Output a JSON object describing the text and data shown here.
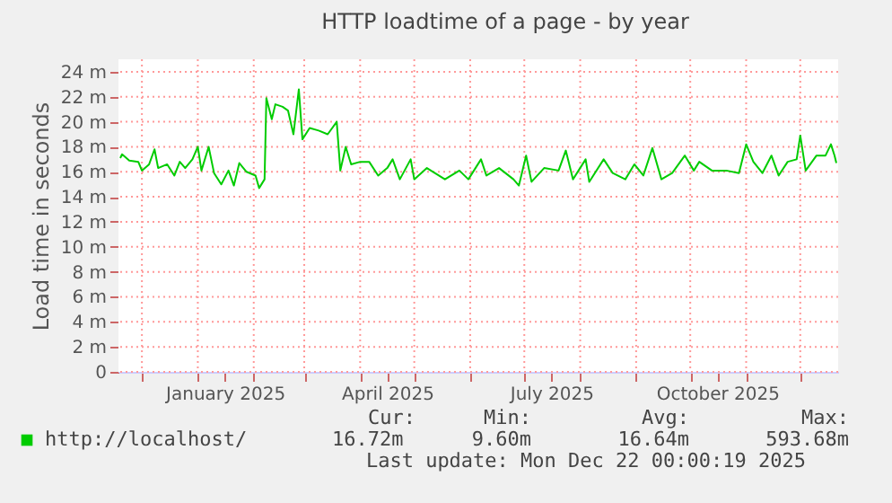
{
  "chart_data": {
    "type": "line",
    "title": "HTTP loadtime of a page - by year",
    "ylabel": "Load time in seconds",
    "x": [
      "2024-11-19",
      "2024-11-20",
      "2024-11-24",
      "2024-11-29",
      "2024-12-01",
      "2024-12-05",
      "2024-12-08",
      "2024-12-10",
      "2024-12-15",
      "2024-12-19",
      "2024-12-22",
      "2024-12-25",
      "2024-12-29",
      "2025-01-01",
      "2025-01-03",
      "2025-01-07",
      "2025-01-10",
      "2025-01-14",
      "2025-01-18",
      "2025-01-21",
      "2025-01-24",
      "2025-01-28",
      "2025-02-02",
      "2025-02-04",
      "2025-02-07",
      "2025-02-08",
      "2025-02-11",
      "2025-02-13",
      "2025-02-17",
      "2025-02-20",
      "2025-02-23",
      "2025-02-26",
      "2025-02-28",
      "2025-03-04",
      "2025-03-09",
      "2025-03-14",
      "2025-03-19",
      "2025-03-21",
      "2025-03-24",
      "2025-03-27",
      "2025-04-01",
      "2025-04-06",
      "2025-04-11",
      "2025-04-16",
      "2025-04-19",
      "2025-04-23",
      "2025-04-29",
      "2025-05-01",
      "2025-05-08",
      "2025-05-18",
      "2025-05-26",
      "2025-05-31",
      "2025-06-07",
      "2025-06-10",
      "2025-06-17",
      "2025-06-25",
      "2025-06-28",
      "2025-07-02",
      "2025-07-05",
      "2025-07-12",
      "2025-07-20",
      "2025-07-24",
      "2025-07-28",
      "2025-08-04",
      "2025-08-06",
      "2025-08-14",
      "2025-08-19",
      "2025-08-26",
      "2025-08-31",
      "2025-09-05",
      "2025-09-10",
      "2025-09-15",
      "2025-09-21",
      "2025-09-28",
      "2025-10-03",
      "2025-10-06",
      "2025-10-13",
      "2025-10-21",
      "2025-10-28",
      "2025-11-01",
      "2025-11-05",
      "2025-11-10",
      "2025-11-15",
      "2025-11-19",
      "2025-11-24",
      "2025-11-29",
      "2025-12-01",
      "2025-12-04",
      "2025-12-10",
      "2025-12-15",
      "2025-12-18",
      "2025-12-20",
      "2025-12-21"
    ],
    "series": [
      {
        "name": "http://localhost/",
        "color": "#00cc00",
        "values": [
          17.1,
          17.4,
          16.9,
          16.8,
          16.1,
          16.6,
          17.8,
          16.3,
          16.6,
          15.7,
          16.8,
          16.3,
          17.0,
          18.0,
          16.1,
          18.0,
          15.9,
          15.0,
          16.1,
          14.9,
          16.7,
          16.0,
          15.7,
          14.7,
          15.4,
          21.9,
          20.2,
          21.4,
          21.2,
          20.9,
          19.0,
          22.6,
          18.6,
          19.5,
          19.3,
          19.0,
          20.0,
          16.1,
          18.0,
          16.6,
          16.8,
          16.8,
          15.7,
          16.3,
          17.0,
          15.4,
          17.0,
          15.4,
          16.3,
          15.4,
          16.1,
          15.4,
          17.0,
          15.7,
          16.3,
          15.4,
          14.9,
          17.3,
          15.2,
          16.3,
          16.1,
          17.7,
          15.4,
          17.0,
          15.2,
          17.0,
          15.9,
          15.4,
          16.6,
          15.7,
          17.9,
          15.4,
          15.9,
          17.3,
          16.1,
          16.8,
          16.1,
          16.1,
          15.9,
          18.2,
          16.8,
          15.9,
          17.3,
          15.7,
          16.8,
          17.0,
          18.9,
          16.1,
          17.3,
          17.3,
          18.2,
          17.3,
          16.7
        ]
      }
    ],
    "xlim": [
      "2024-11-18",
      "2025-12-22"
    ],
    "xticks": [
      {
        "value": "2024-12-01",
        "label": null
      },
      {
        "value": "2025-01-01",
        "label": null
      },
      {
        "value": "2025-01-16",
        "label": "January 2025"
      },
      {
        "value": "2025-02-01",
        "label": null
      },
      {
        "value": "2025-03-01",
        "label": null
      },
      {
        "value": "2025-04-01",
        "label": null
      },
      {
        "value": "2025-04-16",
        "label": "April 2025"
      },
      {
        "value": "2025-05-01",
        "label": null
      },
      {
        "value": "2025-06-01",
        "label": null
      },
      {
        "value": "2025-07-01",
        "label": null
      },
      {
        "value": "2025-07-16",
        "label": "July 2025"
      },
      {
        "value": "2025-08-01",
        "label": null
      },
      {
        "value": "2025-09-01",
        "label": null
      },
      {
        "value": "2025-10-01",
        "label": null
      },
      {
        "value": "2025-10-16",
        "label": "October 2025"
      },
      {
        "value": "2025-11-01",
        "label": null
      },
      {
        "value": "2025-12-01",
        "label": null
      }
    ],
    "ylim": [
      0,
      25
    ],
    "yticks": [
      0,
      {
        "value": 2,
        "label": "2 m"
      },
      {
        "value": 4,
        "label": "4 m"
      },
      {
        "value": 6,
        "label": "6 m"
      },
      {
        "value": 8,
        "label": "8 m"
      },
      {
        "value": 10,
        "label": "10 m"
      },
      {
        "value": 12,
        "label": "12 m"
      },
      {
        "value": 14,
        "label": "14 m"
      },
      {
        "value": 16,
        "label": "16 m"
      },
      {
        "value": 18,
        "label": "18 m"
      },
      {
        "value": 20,
        "label": "20 m"
      },
      {
        "value": 22,
        "label": "22 m"
      },
      {
        "value": 24,
        "label": "24 m"
      }
    ],
    "grid": true,
    "legend": "bottom",
    "annotations": [
      "Cur:",
      "16.72m",
      "Min:",
      "9.60m",
      "Avg:",
      "16.64m",
      "Max:",
      "593.68m",
      "Last update: Mon Dec 22 00:00:19 2025"
    ]
  }
}
